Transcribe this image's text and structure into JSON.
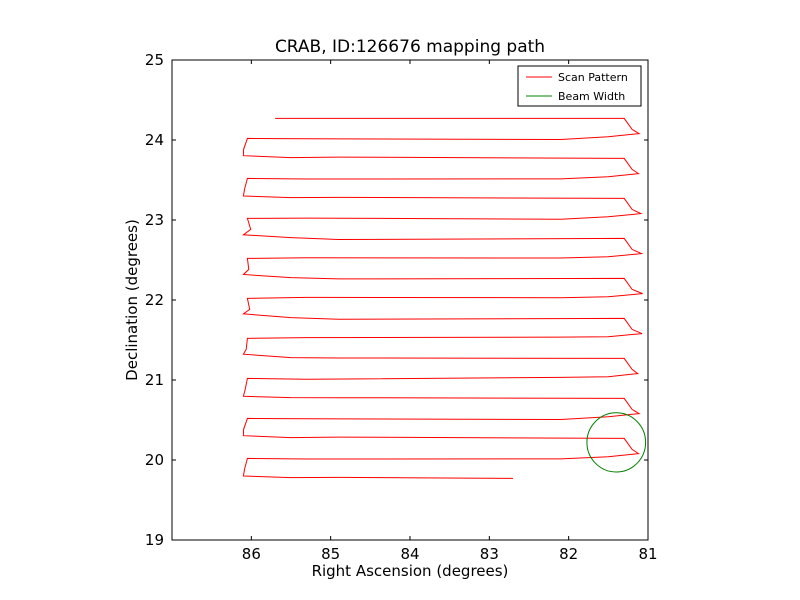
{
  "chart_data": {
    "type": "line",
    "title": "CRAB, ID:126676 mapping path",
    "xlabel": "Right Ascension (degrees)",
    "ylabel": "Declination (degrees)",
    "xlim": [
      87,
      81
    ],
    "ylim": [
      19,
      25
    ],
    "x_inverted": true,
    "xticks": [
      86,
      85,
      84,
      83,
      82,
      81
    ],
    "yticks": [
      19,
      20,
      21,
      22,
      23,
      24,
      25
    ],
    "grid": false,
    "legend_position": "upper right",
    "series": [
      {
        "name": "Scan Pattern",
        "color": "#ff0000",
        "kind": "path",
        "start_dec": 19.77,
        "end_dec": 24.27,
        "rows": 19,
        "ra_start": 82.7,
        "ra_end": 85.7,
        "ra_east_turn": 81.1,
        "ra_west_turn": 86.1
      },
      {
        "name": "Beam Width",
        "color": "#008000",
        "kind": "circle",
        "center_ra": 81.4,
        "center_dec": 20.22,
        "radius_deg": 0.37
      }
    ]
  }
}
